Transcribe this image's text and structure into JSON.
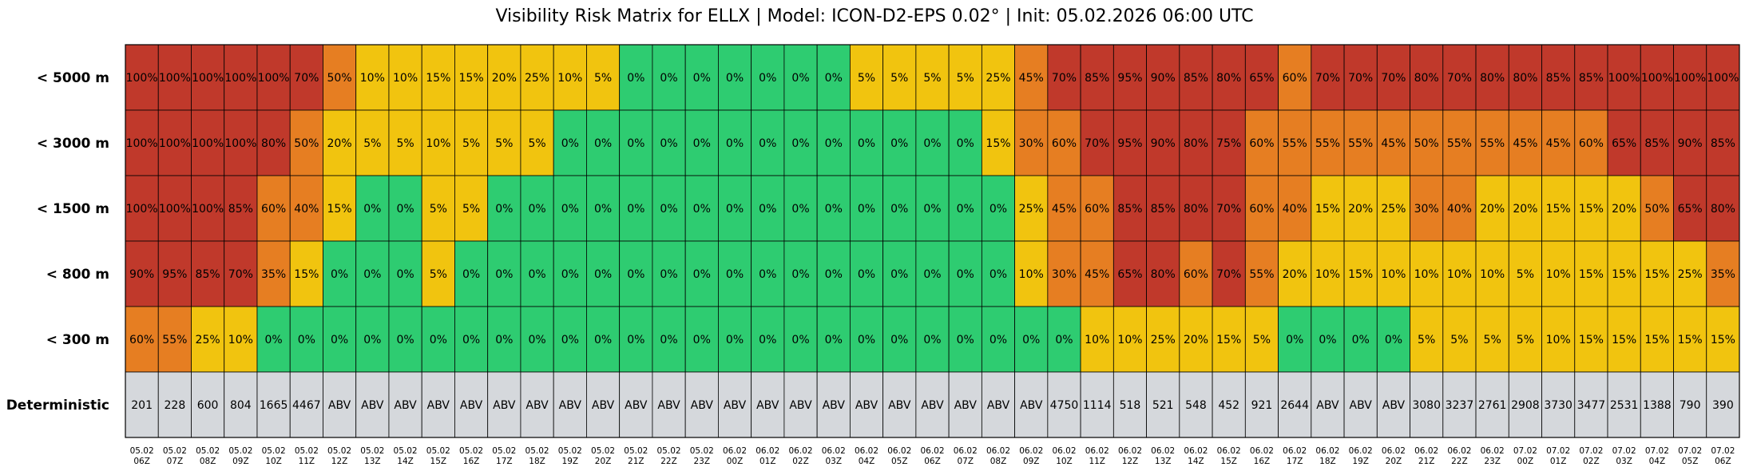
{
  "chart_data": {
    "type": "heatmap",
    "title": "Visibility Risk Matrix for ELLX | Model: ICON-D2-EPS 0.02° | Init: 05.02.2026 06:00 UTC",
    "colors": {
      "high": "#c0392b",
      "elevated": "#e67e22",
      "moderate": "#f1c40f",
      "low": "#2ecc71",
      "deterministic": "#d5d8dc"
    },
    "color_thresholds_percent": {
      "moderate": 5,
      "elevated": 30,
      "high": 65
    },
    "x_tick_labels": [
      [
        "05.02",
        "06Z"
      ],
      [
        "05.02",
        "07Z"
      ],
      [
        "05.02",
        "08Z"
      ],
      [
        "05.02",
        "09Z"
      ],
      [
        "05.02",
        "10Z"
      ],
      [
        "05.02",
        "11Z"
      ],
      [
        "05.02",
        "12Z"
      ],
      [
        "05.02",
        "13Z"
      ],
      [
        "05.02",
        "14Z"
      ],
      [
        "05.02",
        "15Z"
      ],
      [
        "05.02",
        "16Z"
      ],
      [
        "05.02",
        "17Z"
      ],
      [
        "05.02",
        "18Z"
      ],
      [
        "05.02",
        "19Z"
      ],
      [
        "05.02",
        "20Z"
      ],
      [
        "05.02",
        "21Z"
      ],
      [
        "05.02",
        "22Z"
      ],
      [
        "05.02",
        "23Z"
      ],
      [
        "06.02",
        "00Z"
      ],
      [
        "06.02",
        "01Z"
      ],
      [
        "06.02",
        "02Z"
      ],
      [
        "06.02",
        "03Z"
      ],
      [
        "06.02",
        "04Z"
      ],
      [
        "06.02",
        "05Z"
      ],
      [
        "06.02",
        "06Z"
      ],
      [
        "06.02",
        "07Z"
      ],
      [
        "06.02",
        "08Z"
      ],
      [
        "06.02",
        "09Z"
      ],
      [
        "06.02",
        "10Z"
      ],
      [
        "06.02",
        "11Z"
      ],
      [
        "06.02",
        "12Z"
      ],
      [
        "06.02",
        "13Z"
      ],
      [
        "06.02",
        "14Z"
      ],
      [
        "06.02",
        "15Z"
      ],
      [
        "06.02",
        "16Z"
      ],
      [
        "06.02",
        "17Z"
      ],
      [
        "06.02",
        "18Z"
      ],
      [
        "06.02",
        "19Z"
      ],
      [
        "06.02",
        "20Z"
      ],
      [
        "06.02",
        "21Z"
      ],
      [
        "06.02",
        "22Z"
      ],
      [
        "06.02",
        "23Z"
      ],
      [
        "07.02",
        "00Z"
      ],
      [
        "07.02",
        "01Z"
      ],
      [
        "07.02",
        "02Z"
      ],
      [
        "07.02",
        "03Z"
      ],
      [
        "07.02",
        "04Z"
      ],
      [
        "07.02",
        "05Z"
      ],
      [
        "07.02",
        "06Z"
      ]
    ],
    "rows": [
      {
        "label": "< 5000 m",
        "values": [
          100,
          100,
          100,
          100,
          100,
          70,
          50,
          10,
          10,
          15,
          15,
          20,
          25,
          10,
          5,
          0,
          0,
          0,
          0,
          0,
          0,
          0,
          5,
          5,
          5,
          5,
          25,
          45,
          70,
          85,
          95,
          90,
          85,
          80,
          65,
          60,
          70,
          70,
          70,
          80,
          70,
          80,
          80,
          85,
          85,
          100,
          100,
          100,
          100
        ]
      },
      {
        "label": "< 3000 m",
        "values": [
          100,
          100,
          100,
          100,
          80,
          50,
          20,
          5,
          5,
          10,
          5,
          5,
          5,
          0,
          0,
          0,
          0,
          0,
          0,
          0,
          0,
          0,
          0,
          0,
          0,
          0,
          15,
          30,
          60,
          70,
          95,
          90,
          80,
          75,
          60,
          55,
          55,
          55,
          45,
          50,
          55,
          55,
          45,
          45,
          60,
          65,
          85,
          90,
          85
        ]
      },
      {
        "label": "< 1500 m",
        "values": [
          100,
          100,
          100,
          85,
          60,
          40,
          15,
          0,
          0,
          5,
          5,
          0,
          0,
          0,
          0,
          0,
          0,
          0,
          0,
          0,
          0,
          0,
          0,
          0,
          0,
          0,
          0,
          25,
          45,
          60,
          85,
          85,
          80,
          70,
          60,
          40,
          15,
          20,
          25,
          30,
          40,
          20,
          20,
          15,
          15,
          20,
          50,
          65,
          80
        ]
      },
      {
        "label": "< 800 m",
        "values": [
          90,
          95,
          85,
          70,
          35,
          15,
          0,
          0,
          0,
          5,
          0,
          0,
          0,
          0,
          0,
          0,
          0,
          0,
          0,
          0,
          0,
          0,
          0,
          0,
          0,
          0,
          0,
          10,
          30,
          45,
          65,
          80,
          60,
          70,
          55,
          20,
          10,
          15,
          10,
          10,
          10,
          10,
          5,
          10,
          15,
          15,
          15,
          25,
          35
        ]
      },
      {
        "label": "< 300 m",
        "values": [
          60,
          55,
          25,
          10,
          0,
          0,
          0,
          0,
          0,
          0,
          0,
          0,
          0,
          0,
          0,
          0,
          0,
          0,
          0,
          0,
          0,
          0,
          0,
          0,
          0,
          0,
          0,
          0,
          0,
          10,
          10,
          25,
          20,
          15,
          5,
          0,
          0,
          0,
          0,
          5,
          5,
          5,
          5,
          10,
          15,
          15,
          15,
          15,
          15
        ]
      }
    ],
    "deterministic": {
      "label": "Deterministic",
      "values": [
        "201",
        "228",
        "600",
        "804",
        "1665",
        "4467",
        "ABV",
        "ABV",
        "ABV",
        "ABV",
        "ABV",
        "ABV",
        "ABV",
        "ABV",
        "ABV",
        "ABV",
        "ABV",
        "ABV",
        "ABV",
        "ABV",
        "ABV",
        "ABV",
        "ABV",
        "ABV",
        "ABV",
        "ABV",
        "ABV",
        "ABV",
        "4750",
        "1114",
        "518",
        "521",
        "548",
        "452",
        "921",
        "2644",
        "ABV",
        "ABV",
        "ABV",
        "3080",
        "3237",
        "2761",
        "2908",
        "3730",
        "3477",
        "2531",
        "1388",
        "790",
        "390"
      ]
    }
  }
}
